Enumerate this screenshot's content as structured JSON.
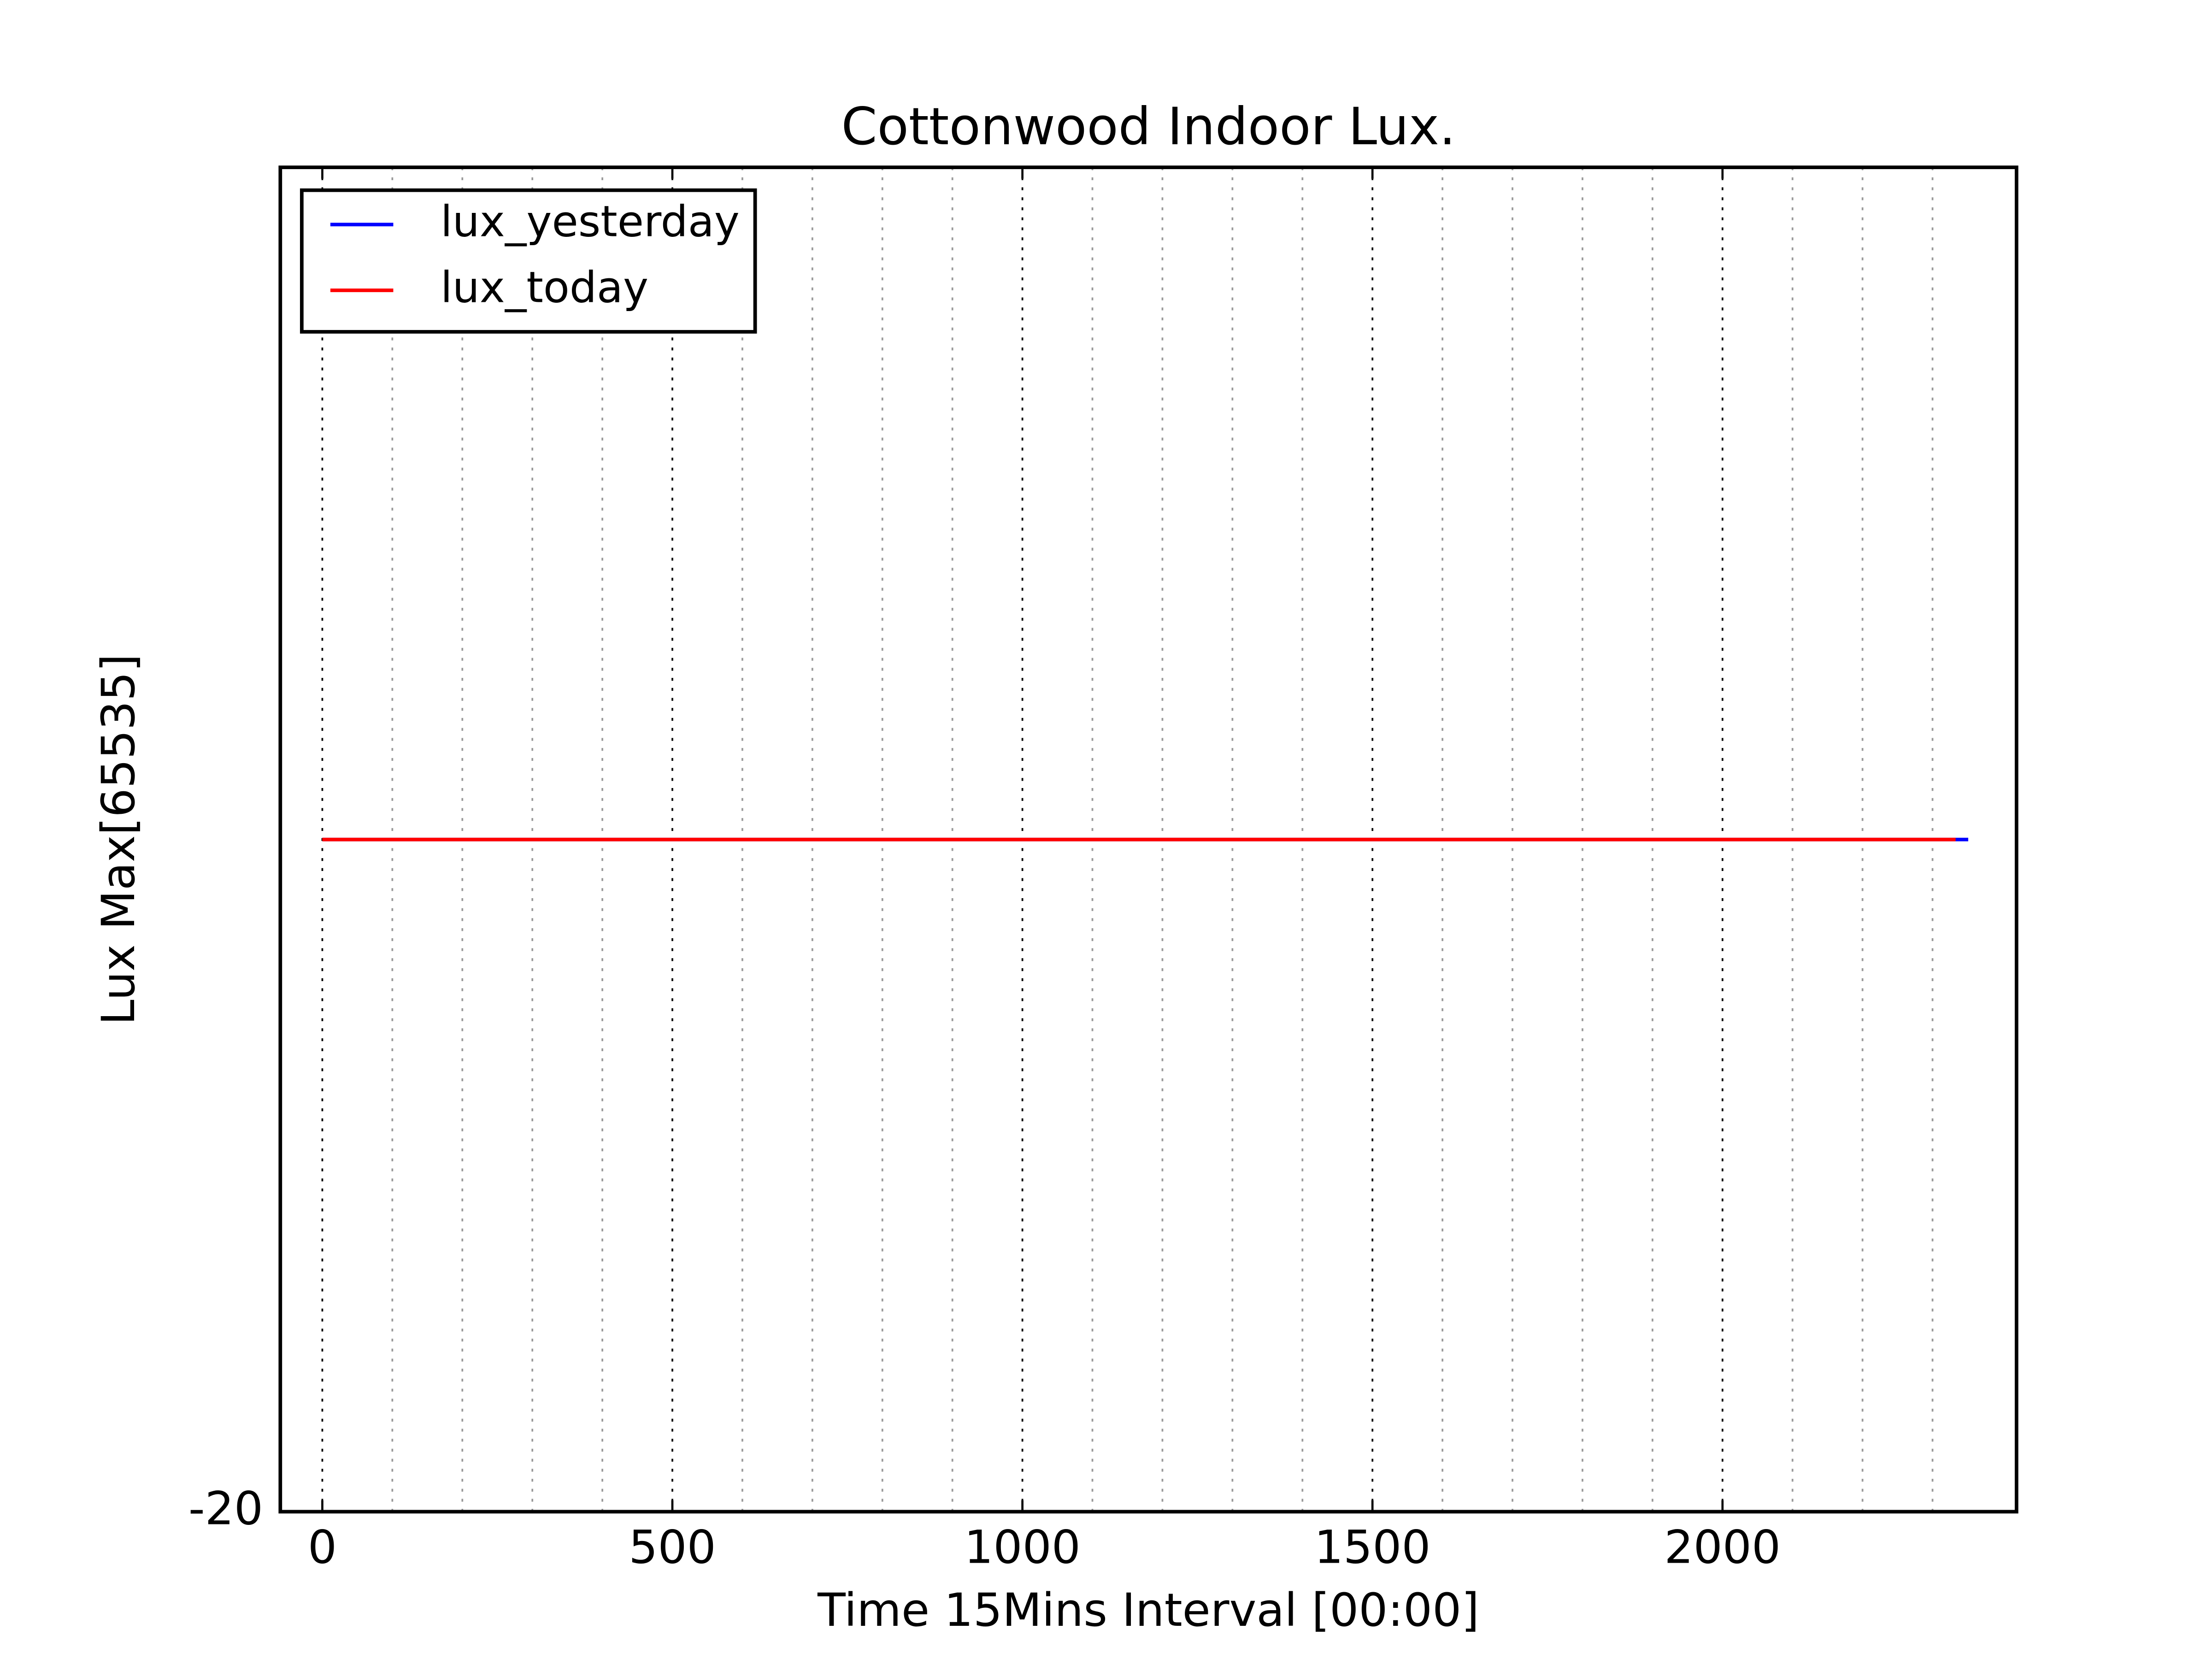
{
  "chart_data": {
    "type": "line",
    "title": "Cottonwood Indoor Lux.",
    "xlabel": "Time 15Mins Interval [00:00]",
    "ylabel": "Lux Max[65535]",
    "series": [
      {
        "name": "lux_yesterday",
        "color": "#0000ff",
        "x": [
          0,
          2351
        ],
        "values": [
          0,
          0
        ]
      },
      {
        "name": "lux_today",
        "color": "#ff0000",
        "x": [
          0,
          2333
        ],
        "values": [
          0,
          0
        ]
      }
    ],
    "xlim": [
      -60,
      2420
    ],
    "xticks": [
      0,
      500,
      1000,
      1500,
      2000
    ],
    "xminorticks": [
      100,
      200,
      300,
      400,
      600,
      700,
      800,
      900,
      1100,
      1200,
      1300,
      1400,
      1600,
      1700,
      1800,
      1900,
      2100,
      2200,
      2300
    ],
    "ylim": [
      -20,
      20
    ],
    "yticks": [
      -20
    ],
    "grid": true,
    "legend": "upper left"
  }
}
